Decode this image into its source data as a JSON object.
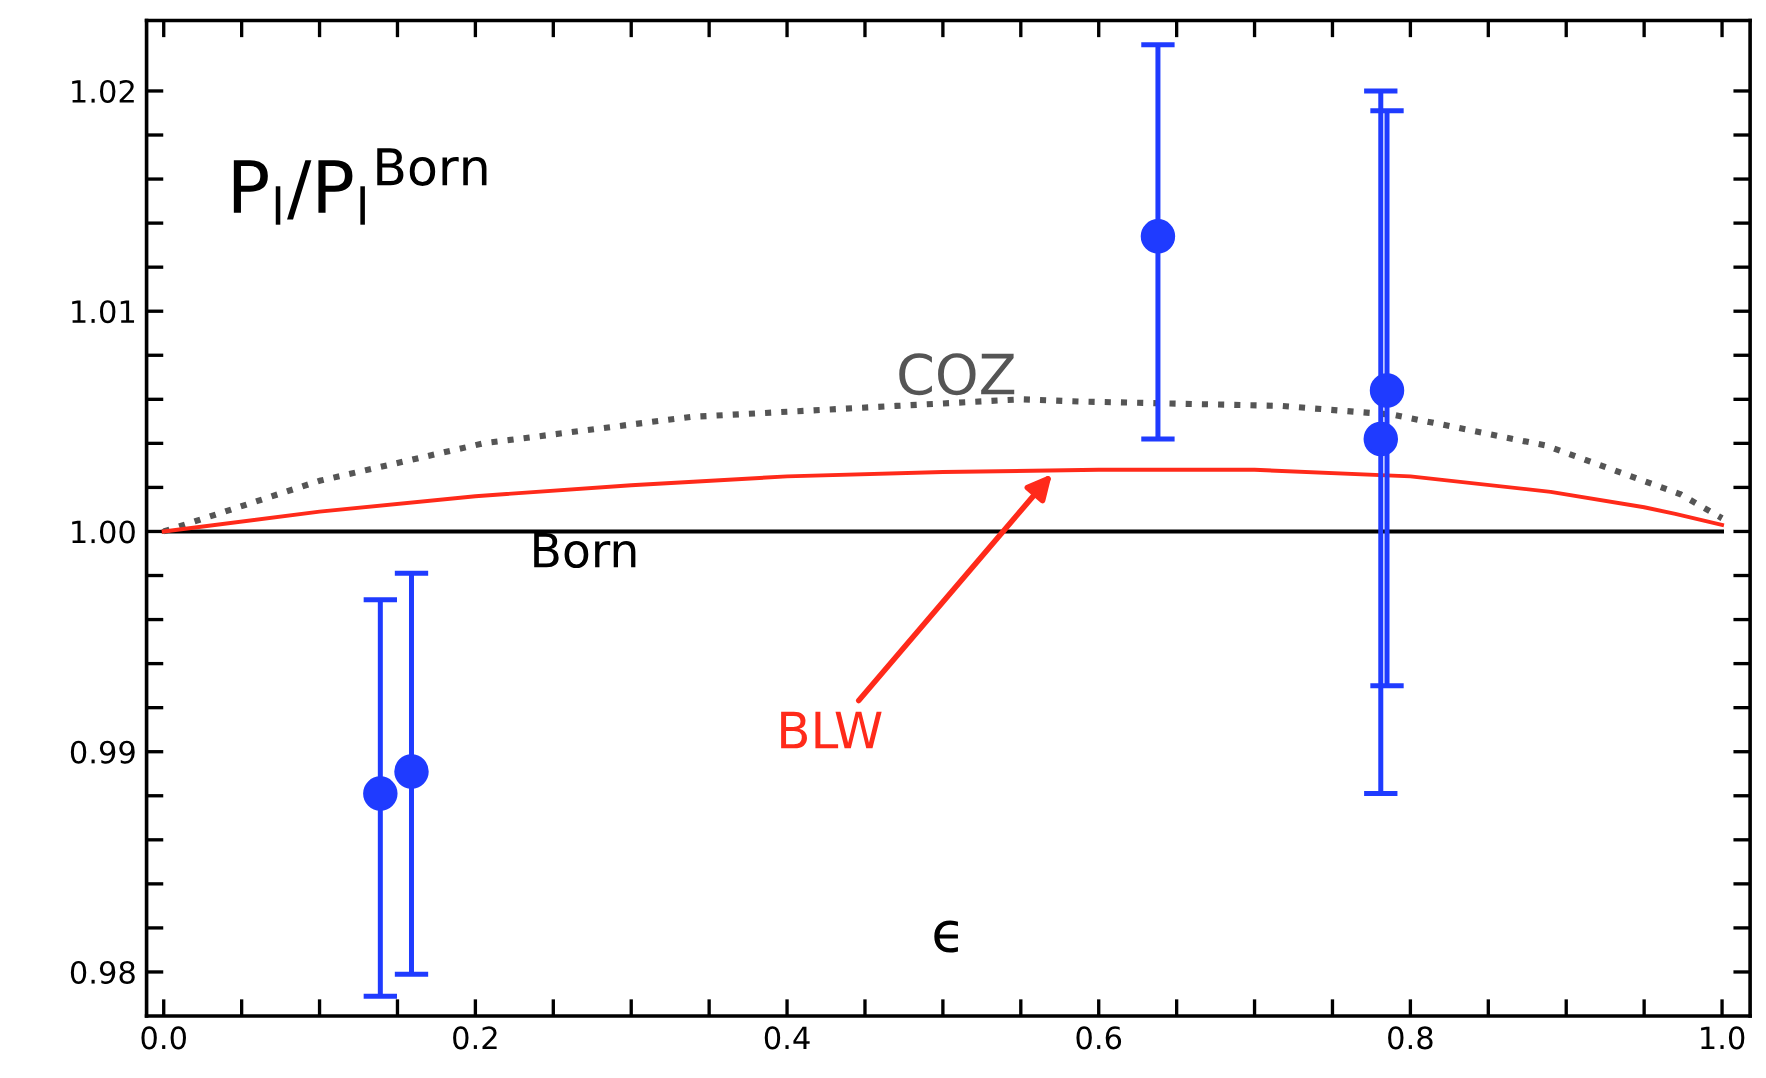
{
  "chart_data": {
    "type": "line",
    "xlabel": "ϵ",
    "ylabel": "P$_{l}$/P$_{l}$$^{Born}$",
    "xlim": [
      -0.011,
      1.018
    ],
    "ylim": [
      0.978,
      1.0232
    ],
    "xticks": [
      {
        "value": 0.0,
        "label": "0.0"
      },
      {
        "value": 0.05,
        "label": null
      },
      {
        "value": 0.1,
        "label": null
      },
      {
        "value": 0.15,
        "label": null
      },
      {
        "value": 0.2,
        "label": "0.2"
      },
      {
        "value": 0.25,
        "label": null
      },
      {
        "value": 0.3,
        "label": null
      },
      {
        "value": 0.35,
        "label": null
      },
      {
        "value": 0.4,
        "label": "0.4"
      },
      {
        "value": 0.45,
        "label": null
      },
      {
        "value": 0.5,
        "label": null
      },
      {
        "value": 0.55,
        "label": null
      },
      {
        "value": 0.6,
        "label": "0.6"
      },
      {
        "value": 0.65,
        "label": null
      },
      {
        "value": 0.7,
        "label": null
      },
      {
        "value": 0.75,
        "label": null
      },
      {
        "value": 0.8,
        "label": "0.8"
      },
      {
        "value": 0.85,
        "label": null
      },
      {
        "value": 0.9,
        "label": null
      },
      {
        "value": 0.95,
        "label": null
      },
      {
        "value": 1.0,
        "label": "1.0"
      }
    ],
    "yticks": [
      {
        "value": 0.98,
        "label": "0.98"
      },
      {
        "value": 0.982,
        "label": null
      },
      {
        "value": 0.984,
        "label": null
      },
      {
        "value": 0.986,
        "label": null
      },
      {
        "value": 0.988,
        "label": null
      },
      {
        "value": 0.99,
        "label": "0.99"
      },
      {
        "value": 0.992,
        "label": null
      },
      {
        "value": 0.994,
        "label": null
      },
      {
        "value": 0.996,
        "label": null
      },
      {
        "value": 0.998,
        "label": null
      },
      {
        "value": 1.0,
        "label": "1.00"
      },
      {
        "value": 1.002,
        "label": null
      },
      {
        "value": 1.004,
        "label": null
      },
      {
        "value": 1.006,
        "label": null
      },
      {
        "value": 1.008,
        "label": null
      },
      {
        "value": 1.01,
        "label": "1.01"
      },
      {
        "value": 1.012,
        "label": null
      },
      {
        "value": 1.014,
        "label": null
      },
      {
        "value": 1.016,
        "label": null
      },
      {
        "value": 1.018,
        "label": null
      },
      {
        "value": 1.02,
        "label": "1.02"
      }
    ],
    "grid": false,
    "legend": false,
    "series": [
      {
        "name": "Born",
        "color": "#000000",
        "line_style": "solid",
        "x": [
          0.0,
          1.0
        ],
        "values": [
          1.0,
          1.0
        ]
      },
      {
        "name": "COZ",
        "color": "#555555",
        "line_style": "dotted",
        "x": [
          0.0,
          0.1,
          0.205,
          0.338,
          0.47,
          0.55,
          0.588,
          0.717,
          0.789,
          0.887,
          0.973,
          1.0
        ],
        "values": [
          1.0,
          1.0023,
          1.004,
          1.0052,
          1.0057,
          1.006,
          1.0059,
          1.0057,
          1.0053,
          1.0039,
          1.0017,
          1.0006
        ]
      },
      {
        "name": "BLW",
        "color": "#ff2a1a",
        "line_style": "solid",
        "x": [
          0.0,
          0.1,
          0.2,
          0.3,
          0.4,
          0.5,
          0.6,
          0.7,
          0.8,
          0.89,
          0.95,
          0.97,
          1.0
        ],
        "values": [
          1.0,
          1.0009,
          1.0016,
          1.0021,
          1.0025,
          1.0027,
          1.0028,
          1.0028,
          1.0025,
          1.0018,
          1.0011,
          1.0008,
          1.0003
        ]
      },
      {
        "type": "scatter",
        "color": "#1f3bff",
        "marker": "circle",
        "x": [
          0.139,
          0.159,
          0.638,
          0.781,
          0.785
        ],
        "values": [
          0.9881,
          0.9891,
          1.0134,
          1.0042,
          1.0064
        ],
        "errors": [
          [
            0.9789,
            0.9969
          ],
          [
            0.9799,
            0.9981
          ],
          [
            1.0042,
            1.0221
          ],
          [
            0.9881,
            1.02
          ],
          [
            0.993,
            1.0191
          ]
        ]
      }
    ]
  }
}
